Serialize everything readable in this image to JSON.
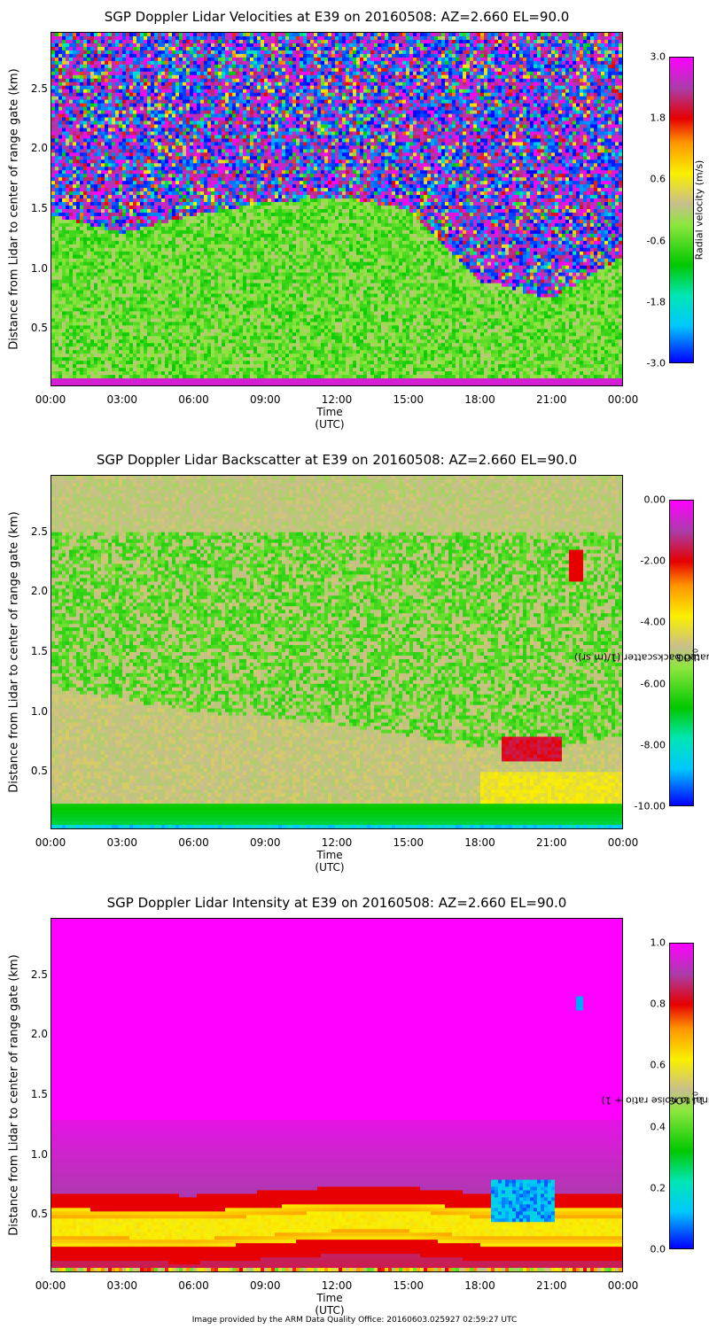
{
  "chart_data": [
    {
      "type": "heatmap",
      "title": "SGP Doppler Lidar Velocities at E39 on 20160508: AZ=2.660 EL=90.0",
      "xlabel": "Time (UTC)",
      "ylabel": "Distance from Lidar to center of range gate (km)",
      "x_ticks": [
        "00:00",
        "03:00",
        "06:00",
        "09:00",
        "12:00",
        "15:00",
        "18:00",
        "21:00",
        "00:00"
      ],
      "y_ticks": [
        "0.5",
        "1.0",
        "1.5",
        "2.0",
        "2.5"
      ],
      "ylim": [
        0.03,
        2.97
      ],
      "colorbar": {
        "label": "Radial velocity (m/s)",
        "ticks": [
          "3.0",
          "1.8",
          "0.6",
          "-0.6",
          "-1.8",
          "-3.0"
        ],
        "range": [
          -3.0,
          3.0
        ]
      },
      "features": {
        "noisy_layer_base_km": [
          [
            0,
            1.45
          ],
          [
            3,
            1.3
          ],
          [
            6,
            1.45
          ],
          [
            9,
            1.55
          ],
          [
            12,
            1.6
          ],
          [
            15,
            1.5
          ],
          [
            18,
            0.9
          ],
          [
            21,
            0.75
          ],
          [
            24,
            1.1
          ]
        ],
        "background": "near-zero velocities below layer"
      }
    },
    {
      "type": "heatmap",
      "title": "SGP Doppler Lidar Backscatter at E39 on 20160508: AZ=2.660 EL=90.0",
      "xlabel": "Time (UTC)",
      "ylabel": "Distance from Lidar to center of range gate (km)",
      "x_ticks": [
        "00:00",
        "03:00",
        "06:00",
        "09:00",
        "12:00",
        "15:00",
        "18:00",
        "21:00",
        "00:00"
      ],
      "y_ticks": [
        "0.5",
        "1.0",
        "1.5",
        "2.0",
        "2.5"
      ],
      "ylim": [
        0.03,
        2.97
      ],
      "colorbar": {
        "label": "LOG10 Range Corr. Attenuated backscatter (1/(m sr))",
        "label_main": "LOG",
        "label_sub": "10",
        "label_rest": " Range Corr. Attenuated backscatter (1/(m sr))",
        "ticks": [
          "0.00",
          "-2.00",
          "-4.00",
          "-6.00",
          "-8.00",
          "-10.00"
        ],
        "range": [
          -10.0,
          0.0
        ]
      },
      "features": {
        "aerosol_layer_top_km": [
          [
            0,
            1.2
          ],
          [
            6,
            1.0
          ],
          [
            12,
            0.9
          ],
          [
            15,
            0.8
          ],
          [
            18,
            0.7
          ],
          [
            21,
            0.7
          ],
          [
            24,
            0.8
          ]
        ],
        "cloud_base_km": [
          [
            19,
            0.55
          ],
          [
            20,
            0.75
          ],
          [
            21,
            0.7
          ],
          [
            22,
            2.3
          ]
        ]
      }
    },
    {
      "type": "heatmap",
      "title": "SGP Doppler Lidar Intensity at E39 on 20160508: AZ=2.660 EL=90.0",
      "xlabel": "Time (UTC)",
      "ylabel": "Distance from Lidar to center of range gate (km)",
      "x_ticks": [
        "00:00",
        "03:00",
        "06:00",
        "09:00",
        "12:00",
        "15:00",
        "18:00",
        "21:00",
        "00:00"
      ],
      "y_ticks": [
        "0.5",
        "1.0",
        "1.5",
        "2.0",
        "2.5"
      ],
      "ylim": [
        0.03,
        2.97
      ],
      "colorbar": {
        "label": "1 - LOG10 Intensity (signal to noise ratio + 1)",
        "label_main": "1 - LOG",
        "label_sub": "10",
        "label_rest": " Intensity (signal to noise ratio + 1)",
        "ticks": [
          "1.0",
          "0.8",
          "0.6",
          "0.4",
          "0.2",
          "0.0"
        ],
        "range": [
          0.0,
          1.0
        ]
      },
      "features": {
        "high_snr_band_km": [
          [
            0,
            0.4
          ],
          [
            6,
            0.38
          ],
          [
            12,
            0.45
          ],
          [
            15,
            0.45
          ],
          [
            18,
            0.4
          ],
          [
            24,
            0.4
          ]
        ],
        "low_value_region": "blue patches near 0.5-0.8 km between 18:30 and 21:00 UTC"
      }
    }
  ],
  "footer": "Image provided by the ARM Data Quality Office: 20160603.025927 02:59:27 UTC"
}
